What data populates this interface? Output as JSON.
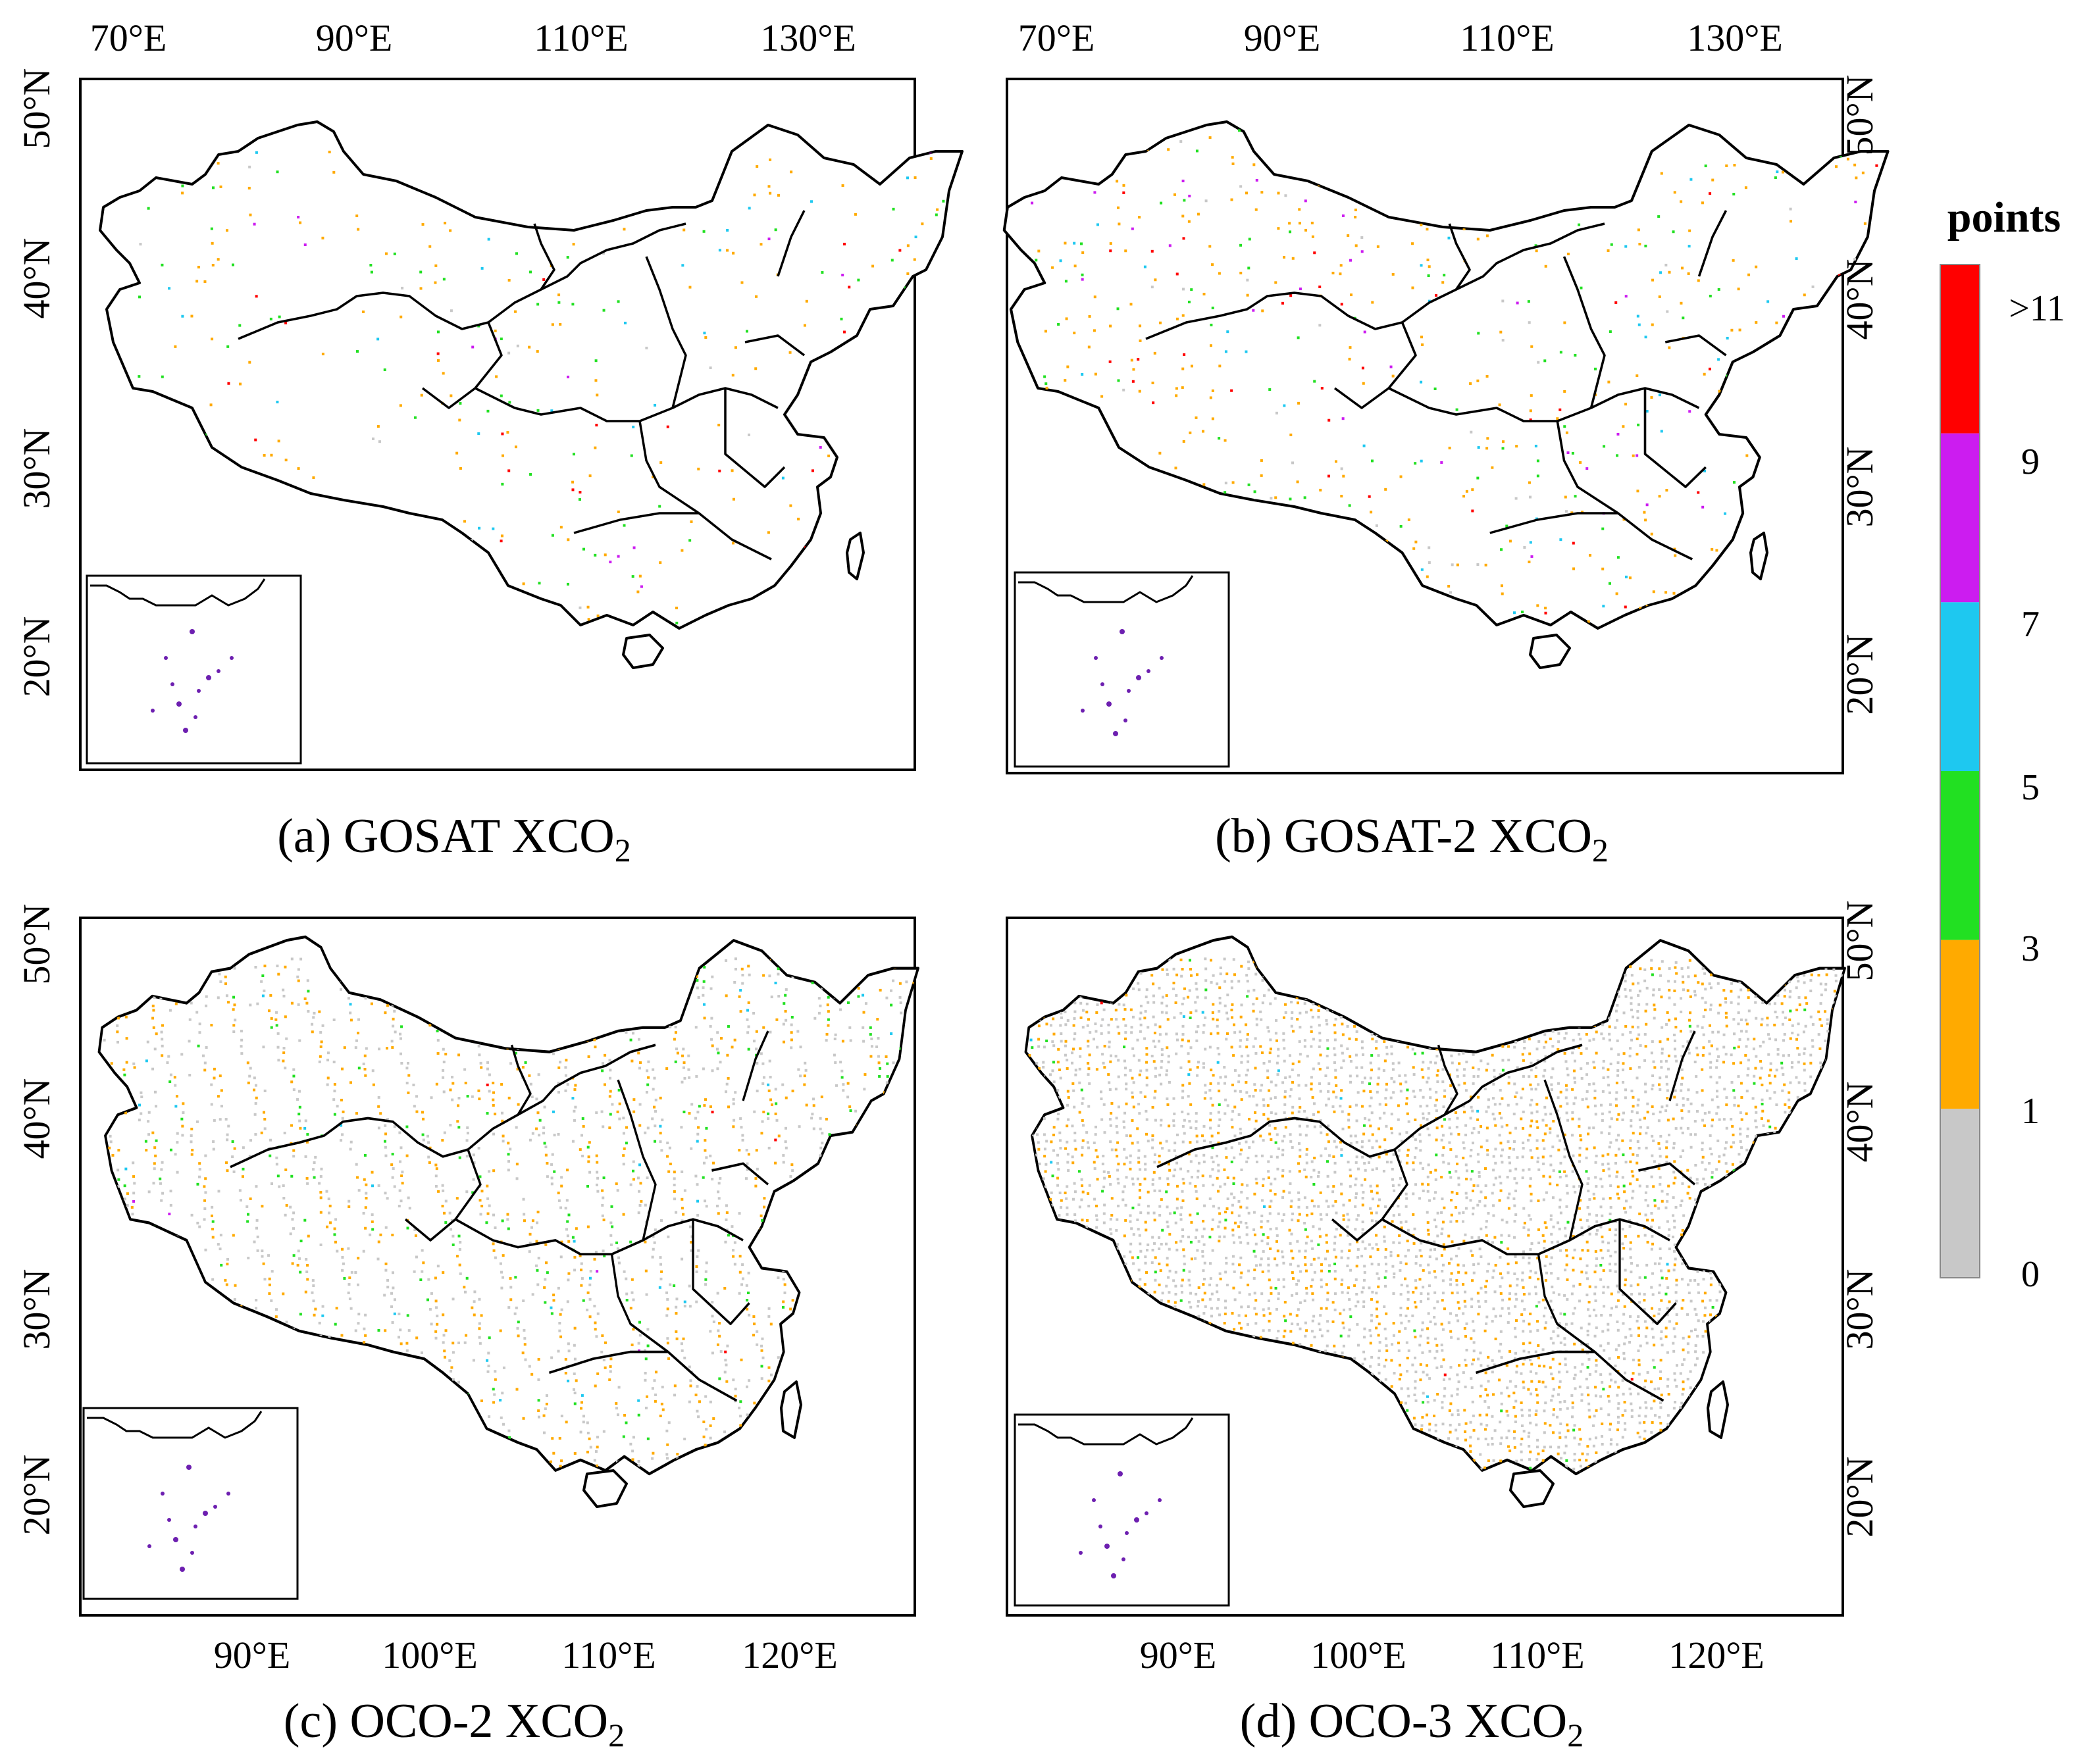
{
  "panels": [
    {
      "id": "a",
      "prefix": "(a) GOSAT XCO",
      "subscript": "2",
      "top_labels": [
        "70°E",
        "90°E",
        "110°E",
        "130°E"
      ],
      "bottom_labels": [],
      "left_labels": [
        "50°N",
        "40°N",
        "30°N",
        "20°N"
      ],
      "right_labels": [],
      "density": 0.05,
      "mix": [
        0.06,
        0.58,
        0.84,
        0.9,
        0.93,
        1.0
      ],
      "stripes": false
    },
    {
      "id": "b",
      "prefix": "(b) GOSAT-2 XCO",
      "subscript": "2",
      "top_labels": [
        "70°E",
        "90°E",
        "110°E",
        "130°E"
      ],
      "bottom_labels": [],
      "left_labels": [],
      "right_labels": [
        "50°N",
        "40°N",
        "30°N",
        "20°N"
      ],
      "density": 0.09,
      "mix": [
        0.08,
        0.6,
        0.8,
        0.87,
        0.94,
        1.0
      ],
      "stripes": false
    },
    {
      "id": "c",
      "prefix": "(c) OCO-2 XCO",
      "subscript": "2",
      "top_labels": [],
      "bottom_labels": [
        "90°E",
        "100°E",
        "110°E",
        "120°E"
      ],
      "left_labels": [
        "50°N",
        "40°N",
        "30°N",
        "20°N"
      ],
      "right_labels": [],
      "density": 0.32,
      "mix": [
        0.55,
        0.87,
        0.97,
        0.995,
        0.998,
        1.0
      ],
      "stripes": true
    },
    {
      "id": "d",
      "prefix": "(d) OCO-3 XCO",
      "subscript": "2",
      "top_labels": [],
      "bottom_labels": [
        "90°E",
        "100°E",
        "110°E",
        "120°E"
      ],
      "left_labels": [],
      "right_labels": [
        "50°N",
        "40°N",
        "30°N",
        "20°N"
      ],
      "density": 0.75,
      "mix": [
        0.7,
        0.97,
        0.995,
        0.998,
        0.999,
        1.0
      ],
      "stripes": false
    }
  ],
  "legend": {
    "title": "points",
    "labels": [
      ">11",
      "9",
      "7",
      "5",
      "3",
      "1",
      "0"
    ],
    "colors": [
      "#ff0000",
      "#cc1cf0",
      "#1ec8f0",
      "#22e022",
      "#ffaa00",
      "#c8c8c8"
    ]
  }
}
